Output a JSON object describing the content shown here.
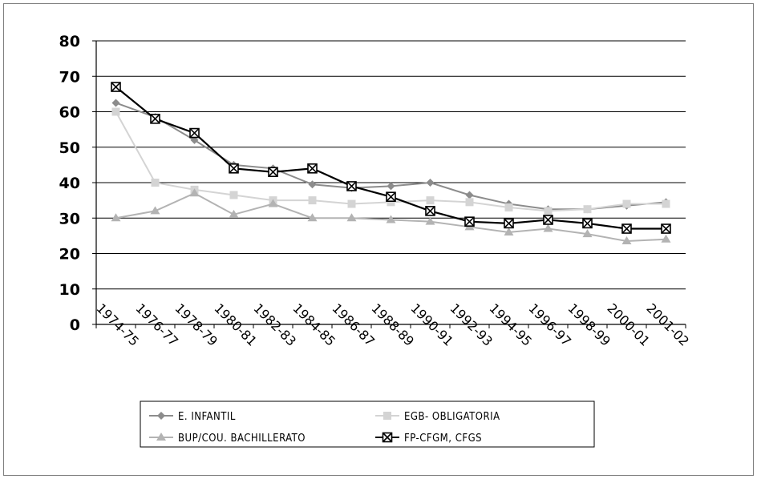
{
  "chart_data": {
    "type": "line",
    "categories": [
      "1974-75",
      "1976-77",
      "1978-79",
      "1980-81",
      "1982-83",
      "1984-85",
      "1986-87",
      "1988-89",
      "1990-91",
      "1992-93",
      "1994-95",
      "1996-97",
      "1998-99",
      "2000-01",
      "2001-02"
    ],
    "ylim": [
      0,
      80
    ],
    "yticks": [
      0,
      10,
      20,
      30,
      40,
      50,
      60,
      70,
      80
    ],
    "grid": true,
    "legend_position": "bottom",
    "series": [
      {
        "name": "E. INFANTIL",
        "marker": "diamond",
        "color": "#8c8c8c",
        "values": [
          62.5,
          58.5,
          52,
          45,
          44,
          39.5,
          38.5,
          39,
          40,
          36.5,
          34,
          32.5,
          32.5,
          33.5,
          34.5
        ]
      },
      {
        "name": "EGB- OBLIGATORIA",
        "marker": "square",
        "color": "#d4d4d4",
        "values": [
          60,
          40,
          38,
          36.5,
          35,
          35,
          34,
          34.5,
          35,
          34.5,
          33,
          32,
          32.5,
          34,
          34
        ]
      },
      {
        "name": "BUP/COU. BACHILLERATO",
        "marker": "triangle",
        "color": "#b3b3b3",
        "values": [
          30,
          32,
          37,
          31,
          34,
          30,
          30,
          29.5,
          29,
          27.5,
          26,
          27,
          25.5,
          23.5,
          24
        ]
      },
      {
        "name": "FP-CFGM, CFGS",
        "marker": "boxx",
        "color": "#000000",
        "values": [
          67,
          58,
          54,
          44,
          43,
          44,
          39,
          36,
          32,
          29,
          28.5,
          29.5,
          28.5,
          27,
          27
        ]
      }
    ]
  }
}
